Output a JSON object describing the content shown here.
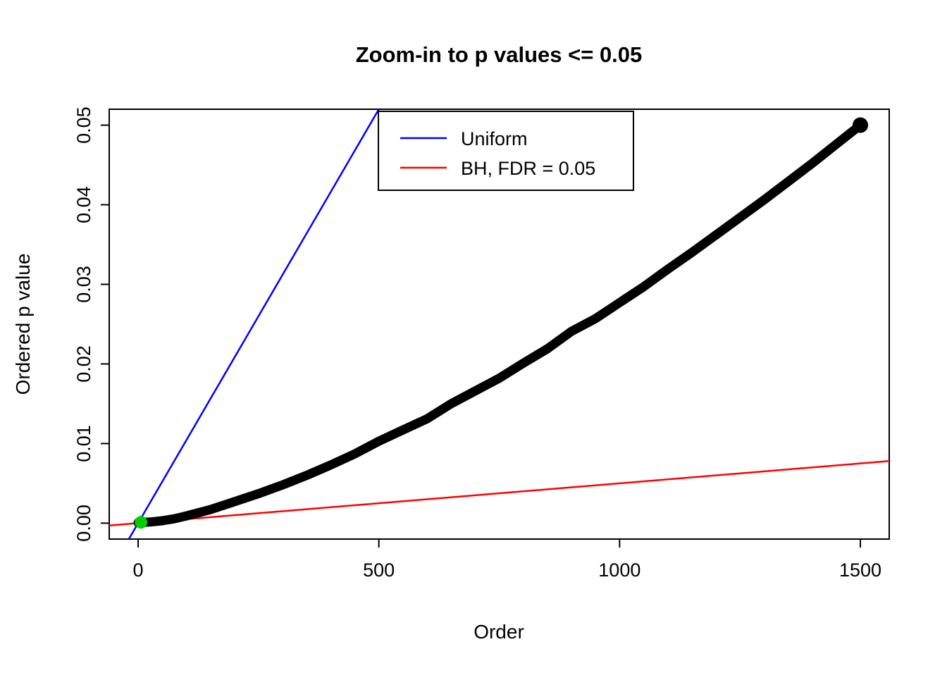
{
  "figure": {
    "background": "#FFFFFF"
  },
  "chart_data": {
    "type": "scatter",
    "title": "Zoom-in to p values <= 0.05",
    "xlabel": "Order",
    "ylabel": "Ordered p value",
    "xlim": [
      -60,
      1560
    ],
    "ylim": [
      -0.002,
      0.052
    ],
    "grid": false,
    "x_ticks": [
      0,
      500,
      1000,
      1500
    ],
    "x_tick_labels": [
      "0",
      "500",
      "1000",
      "1500"
    ],
    "y_ticks": [
      0,
      0.01,
      0.02,
      0.03,
      0.04,
      0.05
    ],
    "y_tick_labels": [
      "0.00",
      "0.01",
      "0.02",
      "0.03",
      "0.04",
      "0.05"
    ],
    "legend": {
      "position": "top-center",
      "entries": [
        {
          "label": "Uniform",
          "color": "#0000FF"
        },
        {
          "label": "BH, FDR = 0.05",
          "color": "#FF0000"
        }
      ]
    },
    "series": [
      {
        "name": "ordered-p-values",
        "type": "thick-point-curve",
        "color": "#000000",
        "marker_size": 13,
        "points": [
          [
            0,
            5e-05
          ],
          [
            25,
            0.00014
          ],
          [
            50,
            0.0003
          ],
          [
            75,
            0.00055
          ],
          [
            100,
            0.0009
          ],
          [
            150,
            0.0017
          ],
          [
            200,
            0.0027
          ],
          [
            250,
            0.0037
          ],
          [
            300,
            0.0048
          ],
          [
            350,
            0.006
          ],
          [
            400,
            0.0073
          ],
          [
            450,
            0.0087
          ],
          [
            500,
            0.0103
          ],
          [
            550,
            0.0117
          ],
          [
            600,
            0.0131
          ],
          [
            650,
            0.015
          ],
          [
            700,
            0.0166
          ],
          [
            750,
            0.0182
          ],
          [
            800,
            0.0201
          ],
          [
            850,
            0.0219
          ],
          [
            900,
            0.0241
          ],
          [
            950,
            0.0257
          ],
          [
            1000,
            0.0277
          ],
          [
            1050,
            0.0297
          ],
          [
            1100,
            0.0319
          ],
          [
            1150,
            0.034
          ],
          [
            1200,
            0.0362
          ],
          [
            1250,
            0.0384
          ],
          [
            1300,
            0.0406
          ],
          [
            1350,
            0.0429
          ],
          [
            1400,
            0.0452
          ],
          [
            1450,
            0.0476
          ],
          [
            1500,
            0.05
          ]
        ]
      },
      {
        "name": "Uniform",
        "type": "line",
        "color": "#0000FF",
        "endpoints": [
          [
            -19.2,
            -0.002
          ],
          [
            500,
            0.052
          ]
        ]
      },
      {
        "name": "BH, FDR = 0.05",
        "type": "line",
        "color": "#FF0000",
        "endpoints": [
          [
            -60,
            -0.0003
          ],
          [
            1560,
            0.0078
          ]
        ]
      },
      {
        "name": "BH-significant",
        "type": "point",
        "color": "#00CC00",
        "point": [
          6,
          0.0001
        ],
        "marker_size": 9
      }
    ]
  }
}
